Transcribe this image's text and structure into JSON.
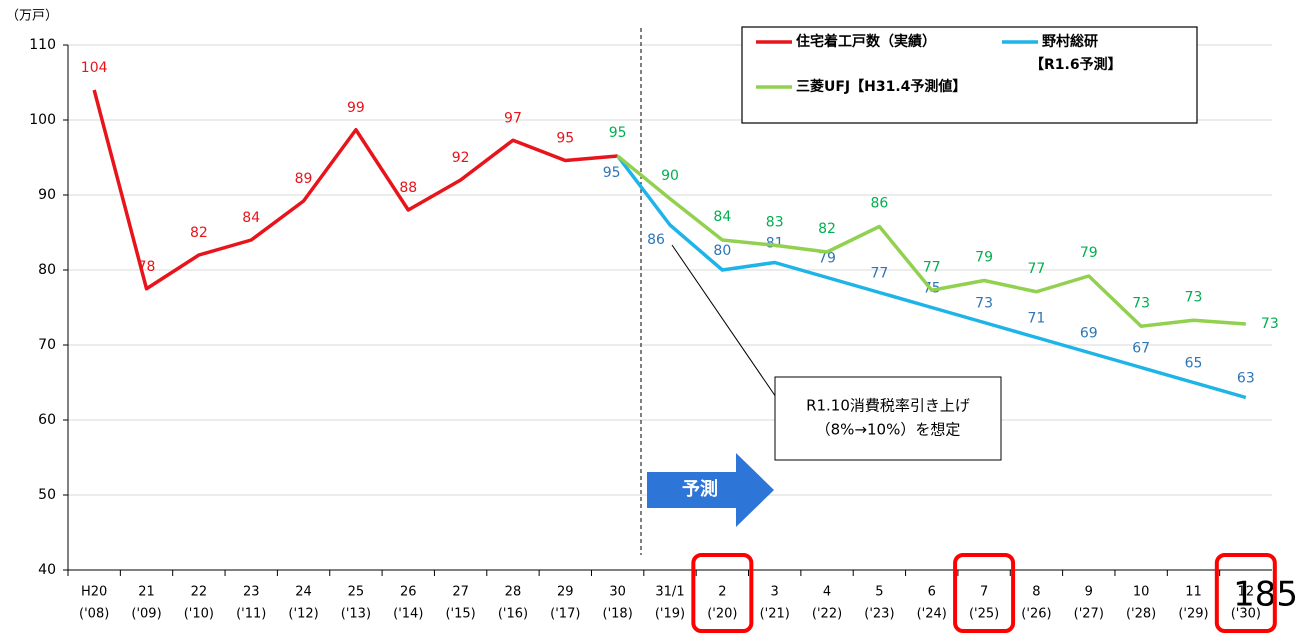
{
  "chart_data": {
    "type": "line",
    "y_axis_label": "（万戸）",
    "categories": [
      [
        "H20",
        "('08)"
      ],
      [
        "21",
        "('09)"
      ],
      [
        "22",
        "('10)"
      ],
      [
        "23",
        "('11)"
      ],
      [
        "24",
        "('12)"
      ],
      [
        "25",
        "('13)"
      ],
      [
        "26",
        "('14)"
      ],
      [
        "27",
        "('15)"
      ],
      [
        "28",
        "('16)"
      ],
      [
        "29",
        "('17)"
      ],
      [
        "30",
        "('18)"
      ],
      [
        "31/1",
        "('19)"
      ],
      [
        "2",
        "('20)"
      ],
      [
        "3",
        "('21)"
      ],
      [
        "4",
        "('22)"
      ],
      [
        "5",
        "('23)"
      ],
      [
        "6",
        "('24)"
      ],
      [
        "7",
        "('25)"
      ],
      [
        "8",
        "('26)"
      ],
      [
        "9",
        "('27)"
      ],
      [
        "10",
        "('28)"
      ],
      [
        "11",
        "('29)"
      ],
      [
        "12",
        "('30)"
      ]
    ],
    "series": [
      {
        "name": "住宅着工戸数（実績）",
        "color": "#e8141b",
        "label_color": "#e8141b",
        "values": [
          104,
          77.5,
          82,
          84,
          89.2,
          98.7,
          88,
          92,
          97.3,
          94.6,
          95.2,
          null,
          null,
          null,
          null,
          null,
          null,
          null,
          null,
          null,
          null,
          null,
          null
        ],
        "value_labels": [
          "104",
          "78",
          "82",
          "84",
          "89",
          "99",
          "88",
          "92",
          "97",
          "95",
          null,
          null,
          null,
          null,
          null,
          null,
          null,
          null,
          null,
          null,
          null,
          null,
          null
        ]
      },
      {
        "name": "野村総研",
        "name_note": "【R1.6予測】",
        "color": "#1eb4e8",
        "label_color": "#2e75b6",
        "values": [
          null,
          null,
          null,
          null,
          null,
          null,
          null,
          null,
          null,
          null,
          95.2,
          86,
          80,
          81,
          79,
          77,
          75,
          73,
          71,
          69,
          67,
          65,
          63
        ],
        "value_labels": [
          null,
          null,
          null,
          null,
          null,
          null,
          null,
          null,
          null,
          null,
          "95",
          "86",
          "80",
          "81",
          "79",
          "77",
          "75",
          "73",
          "71",
          "69",
          "67",
          "65",
          "63"
        ]
      },
      {
        "name": "三菱UFJ【H31.4予測値】",
        "color": "#92d050",
        "label_color": "#00b050",
        "values": [
          null,
          null,
          null,
          null,
          null,
          null,
          null,
          null,
          null,
          null,
          95.2,
          89.5,
          84,
          83.3,
          82.4,
          85.8,
          77.3,
          78.6,
          77.1,
          79.2,
          72.5,
          73.3,
          72.8
        ],
        "value_labels": [
          null,
          null,
          null,
          null,
          null,
          null,
          null,
          null,
          null,
          null,
          "95",
          "90",
          "84",
          "83",
          "82",
          "86",
          "77",
          "79",
          "77",
          "79",
          "73",
          "73",
          "73"
        ]
      }
    ],
    "ylim": [
      40,
      110
    ],
    "yticks": [
      40,
      50,
      60,
      70,
      80,
      90,
      100,
      110
    ],
    "grid": true,
    "annotations": {
      "note": [
        "R1.10消費税率引き上げ",
        "（8%→10%）を想定"
      ],
      "forecast": "予測",
      "page": "185"
    }
  }
}
